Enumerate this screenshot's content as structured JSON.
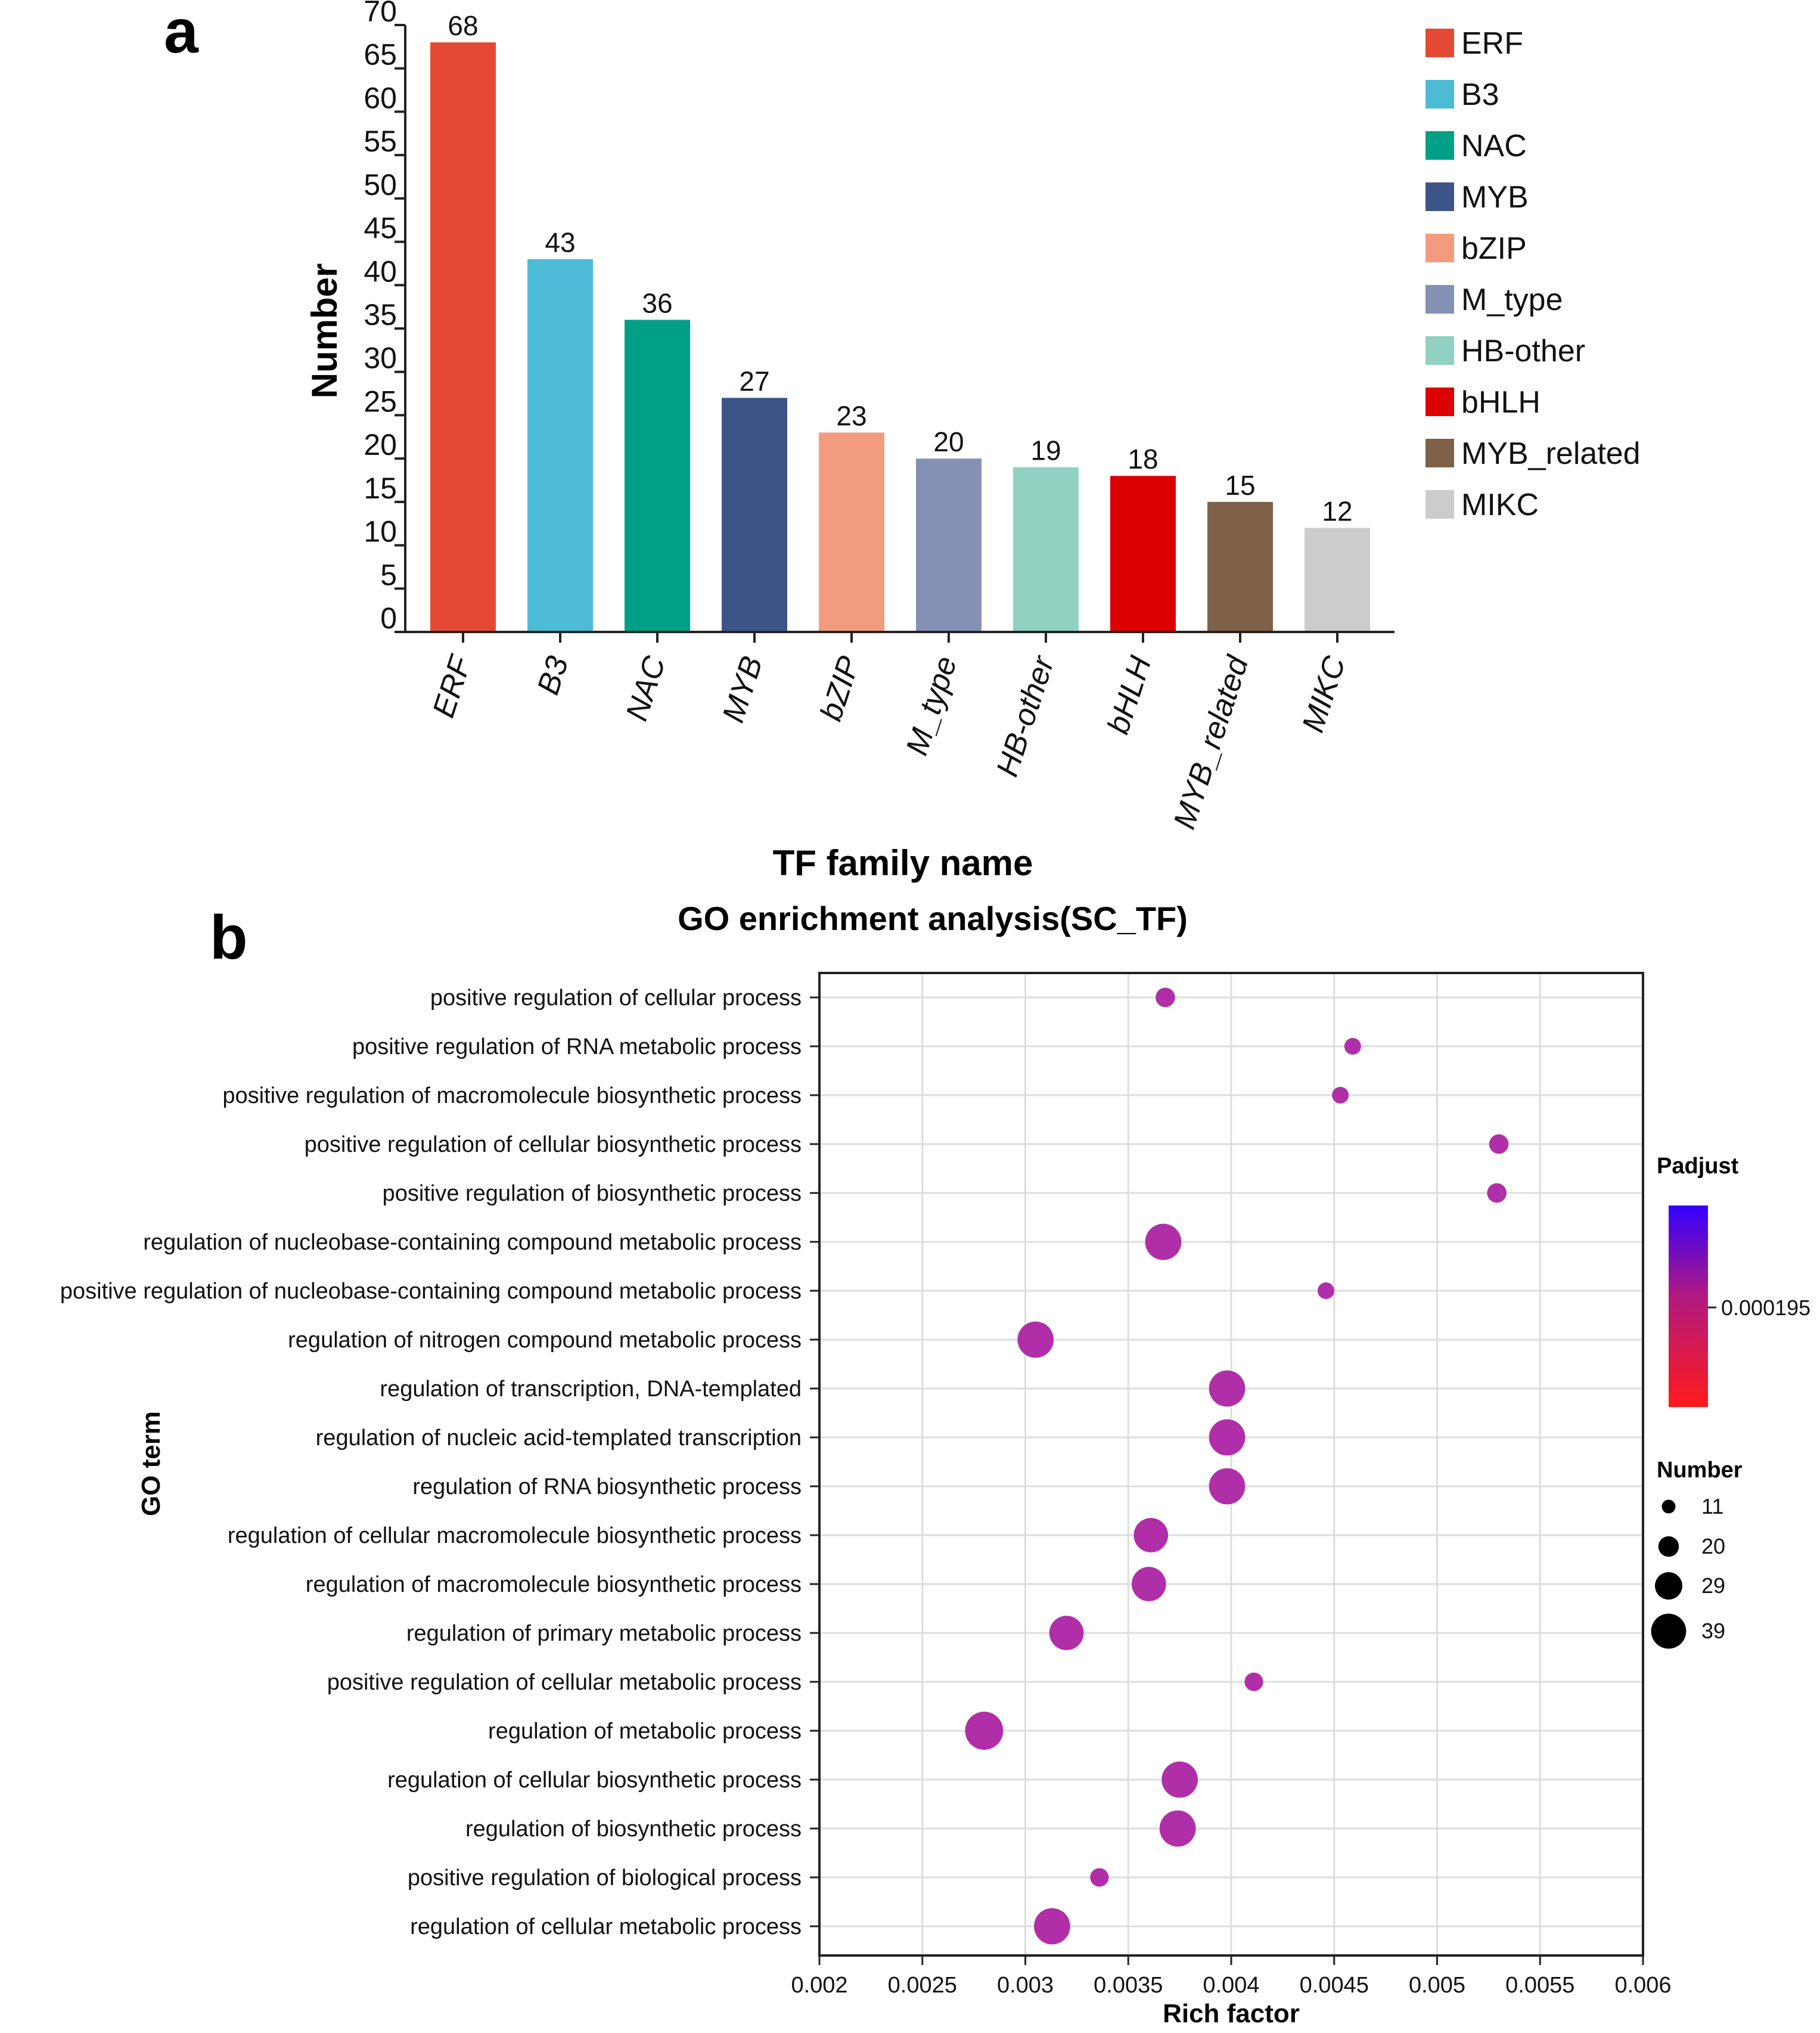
{
  "chart_data": [
    {
      "type": "bar",
      "panel_label": "a",
      "categories": [
        "ERF",
        "B3",
        "NAC",
        "MYB",
        "bZIP",
        "M_type",
        "HB-other",
        "bHLH",
        "MYB_related",
        "MIKC"
      ],
      "values": [
        68,
        43,
        36,
        27,
        23,
        20,
        19,
        18,
        15,
        12
      ],
      "value_labels": [
        "68",
        "43",
        "36",
        "27",
        "23",
        "20",
        "19",
        "18",
        "15",
        "12"
      ],
      "colors": [
        "#e44a33",
        "#4dbbd5",
        "#00a087",
        "#3c5488",
        "#f39b7f",
        "#8491b4",
        "#91d1c2",
        "#dc0000",
        "#7e6148",
        "#cccccc"
      ],
      "xlabel": "TF family name",
      "ylabel": "Number",
      "ylim": [
        0,
        70
      ],
      "yticks": [
        "0",
        "5",
        "10",
        "15",
        "20",
        "25",
        "30",
        "35",
        "40",
        "45",
        "50",
        "55",
        "60",
        "65",
        "70"
      ],
      "legend": [
        "ERF",
        "B3",
        "NAC",
        "MYB",
        "bZIP",
        "M_type",
        "HB-other",
        "bHLH",
        "MYB_related",
        "MIKC"
      ],
      "legend_position": "top-right",
      "grid": false
    },
    {
      "type": "scatter",
      "panel_label": "b",
      "title": "GO enrichment analysis(SC_TF)",
      "xlabel": "Rich factor",
      "ylabel": "GO term",
      "xlim": [
        0.002,
        0.006
      ],
      "xticks": [
        "0.002",
        "0.0025",
        "0.003",
        "0.0035",
        "0.004",
        "0.0045",
        "0.005",
        "0.0055",
        "0.006"
      ],
      "grid": true,
      "point_color": "#b02fa8",
      "terms": [
        "positive regulation of cellular process",
        "positive regulation of RNA metabolic process",
        "positive regulation of macromolecule biosynthetic process",
        "positive regulation of cellular biosynthetic process",
        "positive regulation of biosynthetic process",
        "regulation of nucleobase-containing compound metabolic process",
        "positive regulation of nucleobase-containing compound metabolic process",
        "regulation of nitrogen compound metabolic process",
        "regulation of transcription, DNA-templated",
        "regulation of nucleic acid-templated transcription",
        "regulation of RNA biosynthetic process",
        "regulation of cellular macromolecule biosynthetic process",
        "regulation of macromolecule biosynthetic process",
        "regulation of primary metabolic process",
        "positive regulation of cellular metabolic process",
        "regulation of metabolic process",
        "regulation of cellular biosynthetic process",
        "regulation of biosynthetic process",
        "positive regulation of biological process",
        "regulation of cellular metabolic process"
      ],
      "rich_factor": [
        0.00368,
        0.00459,
        0.00453,
        0.0053,
        0.00529,
        0.00367,
        0.00446,
        0.00305,
        0.00398,
        0.00398,
        0.00398,
        0.00361,
        0.0036,
        0.0032,
        0.00411,
        0.0028,
        0.00375,
        0.00374,
        0.00336,
        0.00313
      ],
      "number": [
        14,
        11,
        11,
        14,
        14,
        32,
        11,
        32,
        32,
        32,
        32,
        30,
        30,
        30,
        13,
        34,
        32,
        32,
        13,
        32
      ],
      "legend_padjust": {
        "title": "Padjust",
        "label": "0.000195",
        "color_low": "#ff1a1a",
        "color_high": "#3300ff"
      },
      "legend_number": {
        "title": "Number",
        "values": [
          11,
          20,
          29,
          39
        ],
        "labels": [
          "11",
          "20",
          "29",
          "39"
        ]
      }
    }
  ]
}
